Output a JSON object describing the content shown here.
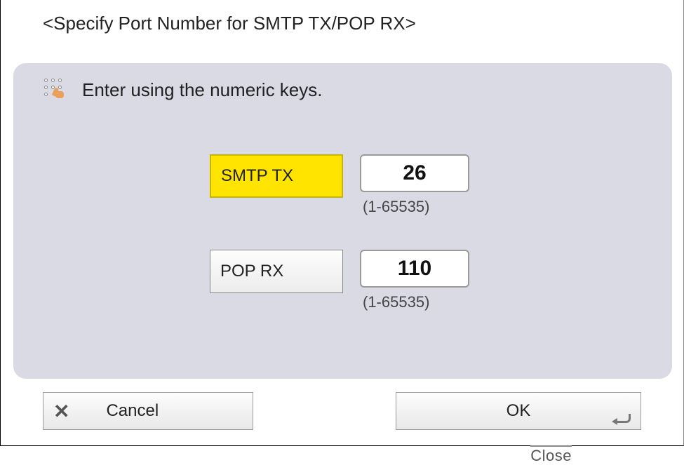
{
  "title": "<Specify Port Number for SMTP TX/POP RX>",
  "hint": "Enter using the numeric keys.",
  "fields": {
    "smtp": {
      "label": "SMTP TX",
      "value": "26",
      "range": "(1-65535)",
      "selected": true
    },
    "pop": {
      "label": "POP RX",
      "value": "110",
      "range": "(1-65535)",
      "selected": false
    }
  },
  "buttons": {
    "cancel": "Cancel",
    "ok": "OK"
  },
  "behind_text": "Close",
  "colors": {
    "panel_bg": "#d9dae4",
    "selected_bg": "#ffe400",
    "button_face": "#f2f2f2",
    "text": "#222222"
  }
}
